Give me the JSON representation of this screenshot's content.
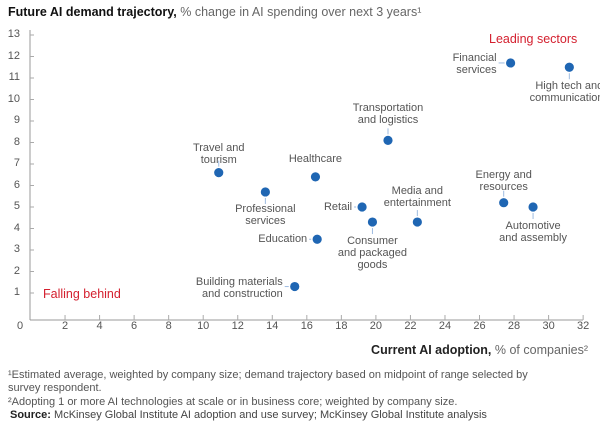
{
  "header": {
    "title_bold": "Future AI demand trajectory,",
    "title_rest": " % change in AI spending over next 3 years¹"
  },
  "chart_data": {
    "type": "scatter",
    "ylabel": "Future AI demand trajectory, % change in AI spending over next 3 years¹",
    "xlabel": "Current AI adoption, % of companies²",
    "xlim": [
      0,
      32
    ],
    "ylim": [
      0,
      13
    ],
    "xticks": [
      "0",
      "2",
      "4",
      "6",
      "8",
      "10",
      "12",
      "14",
      "16",
      "18",
      "20",
      "22",
      "24",
      "26",
      "28",
      "30",
      "32"
    ],
    "yticks": [
      "1",
      "2",
      "3",
      "4",
      "5",
      "6",
      "7",
      "8",
      "9",
      "10",
      "11",
      "12",
      "13"
    ],
    "grid": false,
    "points": [
      {
        "label": "Travel and\ntourism",
        "x": 10.9,
        "y": 6.6
      },
      {
        "label": "Professional\nservices",
        "x": 13.6,
        "y": 5.7
      },
      {
        "label": "Healthcare",
        "x": 16.5,
        "y": 6.4
      },
      {
        "label": "Transportation\nand logistics",
        "x": 20.7,
        "y": 8.1
      },
      {
        "label": "Financial\nservices",
        "x": 27.8,
        "y": 11.7
      },
      {
        "label": "High tech and\ncommunications",
        "x": 31.2,
        "y": 11.5
      },
      {
        "label": "Retail",
        "x": 19.2,
        "y": 5.0
      },
      {
        "label": "Consumer\nand packaged\ngoods",
        "x": 19.8,
        "y": 4.3
      },
      {
        "label": "Media and\nentertainment",
        "x": 22.4,
        "y": 4.3
      },
      {
        "label": "Energy and\nresources",
        "x": 27.4,
        "y": 5.2
      },
      {
        "label": "Automotive\nand assembly",
        "x": 29.1,
        "y": 5.0
      },
      {
        "label": "Education",
        "x": 16.6,
        "y": 3.5
      },
      {
        "label": "Building materials\nand construction",
        "x": 15.3,
        "y": 1.3
      }
    ],
    "annotations": {
      "leading": "Leading sectors",
      "falling": "Falling behind"
    },
    "colors": {
      "point": "#1f66b3",
      "annotation": "#d4202f",
      "leader": "#9dbbe0"
    }
  },
  "xaxis": {
    "label_bold": "Current AI adoption,",
    "label_rest": " % of companies²"
  },
  "footnotes": {
    "note1": "¹Estimated average, weighted by company size; demand trajectory based on midpoint of range selected by\n survey respondent.",
    "note2": "²Adopting 1 or more AI technologies at scale or in business core; weighted by company size.",
    "source_label": "Source:",
    "source_text": " McKinsey Global Institute AI adoption and use survey; McKinsey Global Institute analysis"
  }
}
